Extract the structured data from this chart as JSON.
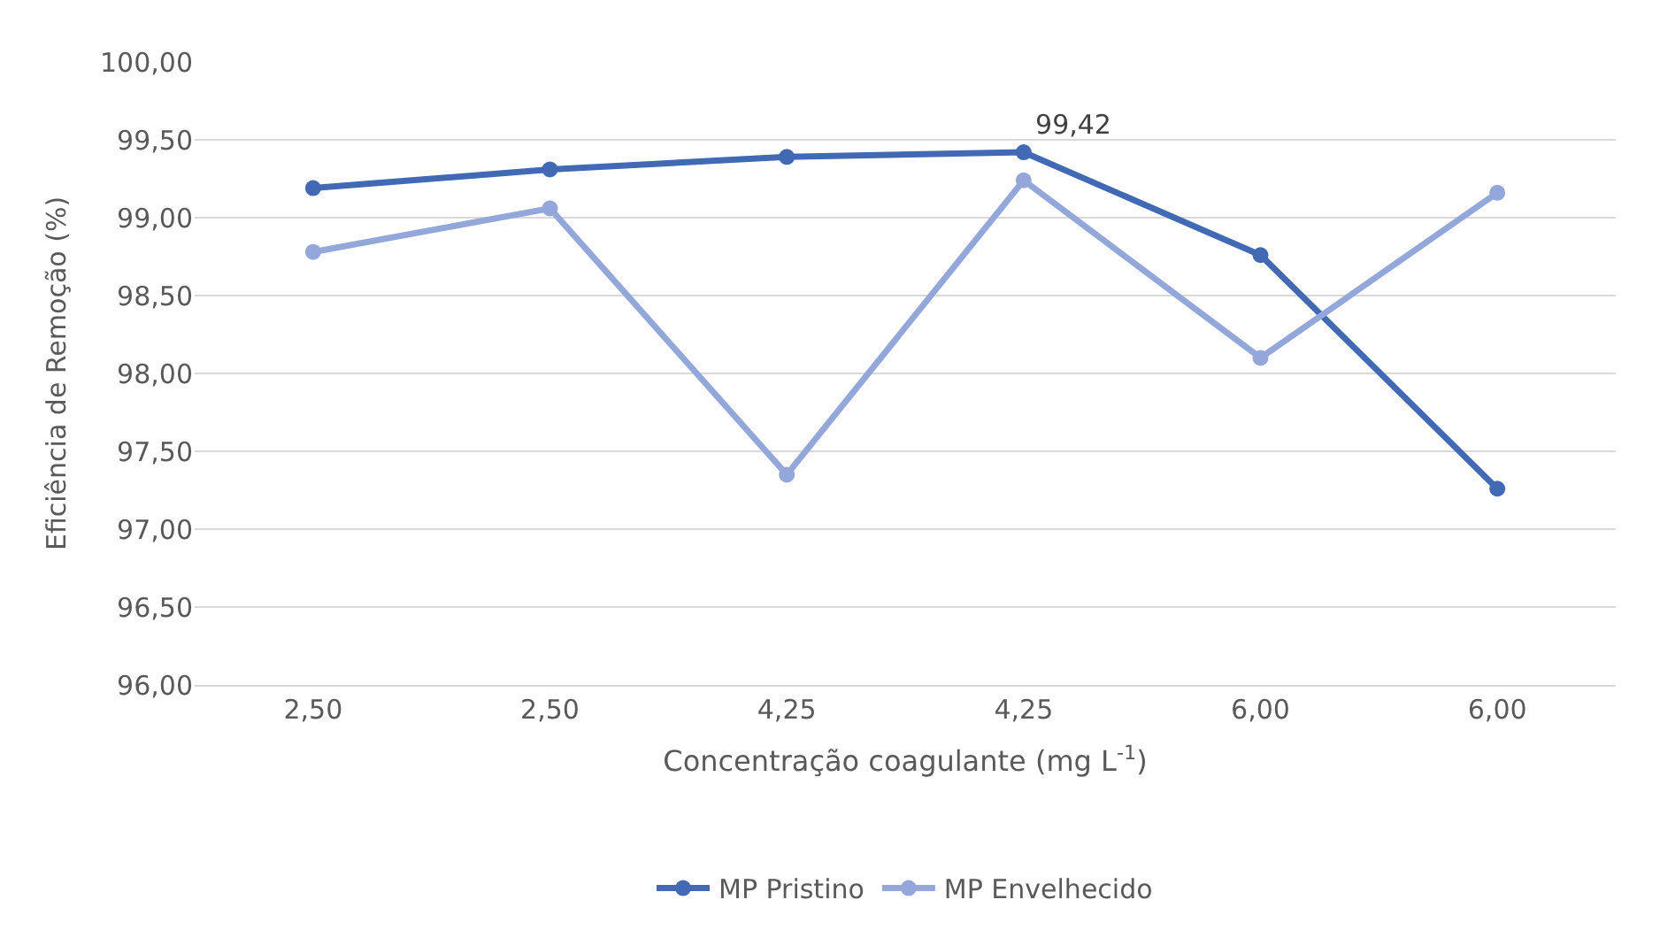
{
  "chart_data": {
    "type": "line",
    "xlabel": "Concentração coagulante (mg L$^{-1}$)",
    "ylabel": "Eficiência de Remoção (%)",
    "categories": [
      "2,50",
      "2,50",
      "4,25",
      "4,25",
      "6,00",
      "6,00"
    ],
    "series": [
      {
        "name": "MP Pristino",
        "color": "#4169b4",
        "values": [
          99.19,
          99.31,
          99.39,
          99.42,
          98.76,
          97.26
        ],
        "value_labels": [
          null,
          null,
          null,
          "99,42",
          null,
          null
        ]
      },
      {
        "name": "MP Envelhecido",
        "color": "#94a7da",
        "values": [
          98.78,
          99.06,
          97.35,
          99.24,
          98.1,
          99.16
        ]
      }
    ],
    "ylim": [
      96,
      100
    ],
    "yticks": [
      {
        "value": 96,
        "label": "96,00"
      },
      {
        "value": 96.5,
        "label": "96,50"
      },
      {
        "value": 97,
        "label": "97,00"
      },
      {
        "value": 97.5,
        "label": "97,50"
      },
      {
        "value": 98,
        "label": "98,00"
      },
      {
        "value": 98.5,
        "label": "98,50"
      },
      {
        "value": 99,
        "label": "99,00"
      },
      {
        "value": 99.5,
        "label": "99,50"
      },
      {
        "value": 100,
        "label": "100,00"
      }
    ],
    "grid": "y",
    "legend": "bottom",
    "marker": "circle",
    "line_style": "solid"
  }
}
